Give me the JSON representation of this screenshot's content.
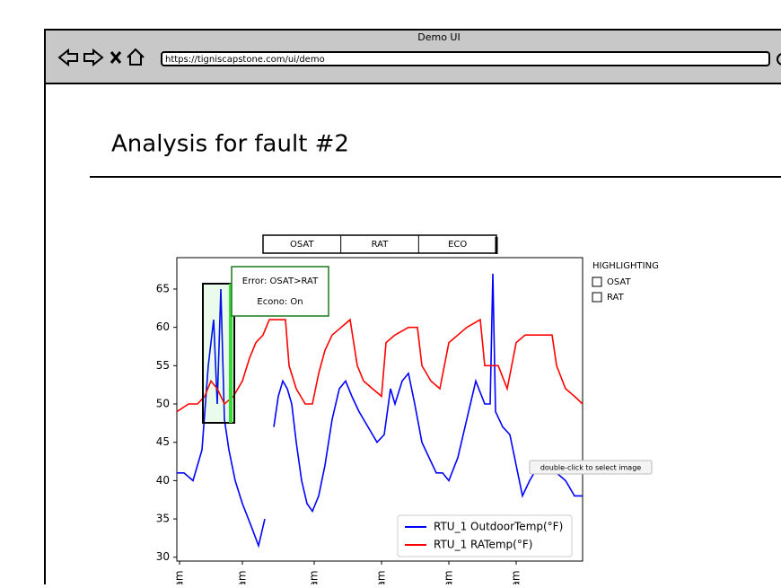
{
  "browser": {
    "title": "Demo UI",
    "url": "https://tigniscapstone.com/ui/demo"
  },
  "heading": "Analysis for fault #2",
  "tabs": [
    "OSAT",
    "RAT",
    "ECO"
  ],
  "highlighting": {
    "title": "HIGHLIGHTING",
    "options": [
      "OSAT",
      "RAT"
    ]
  },
  "tooltip": "double-click to select image",
  "chart_data": {
    "type": "line",
    "annotations": [
      "Error: OSAT>RAT",
      "Econo: On"
    ],
    "series": [
      {
        "name": "RTU_1 OutdoorTemp(°F)",
        "color": "#0000ff",
        "x": [
          0,
          8,
          18,
          28,
          35,
          41,
          45,
          49,
          53,
          58,
          65,
          73,
          83,
          91,
          98,
          103,
          108,
          113,
          118,
          123,
          128,
          133,
          139,
          145,
          151,
          158,
          165,
          173,
          181,
          188,
          195,
          203,
          213,
          223,
          231,
          238,
          243,
          251,
          258,
          265,
          273,
          281,
          289,
          296,
          303,
          313,
          323,
          333,
          343,
          349,
          352,
          355,
          363,
          371,
          378,
          385,
          393,
          403,
          413,
          423,
          433,
          443,
          452
        ],
        "values": [
          41,
          41,
          40,
          44,
          55,
          61,
          50,
          65,
          48,
          44,
          40,
          37,
          34,
          31.5,
          35,
          null,
          47,
          51,
          53,
          52,
          50,
          45,
          40,
          37,
          36,
          38,
          42,
          48,
          52,
          53,
          51,
          49,
          47,
          45,
          46,
          52,
          50,
          53,
          54,
          50,
          45,
          43,
          41,
          41,
          40,
          43,
          48,
          53,
          50,
          50,
          67,
          49,
          47,
          46,
          42,
          38,
          40,
          42,
          41,
          41,
          40,
          38,
          38
        ]
      },
      {
        "name": "RTU_1 RATemp(°F)",
        "color": "#ff0000",
        "x": [
          0,
          13,
          23,
          31,
          38,
          45,
          53,
          63,
          73,
          81,
          88,
          96,
          103,
          113,
          121,
          125,
          133,
          143,
          151,
          158,
          165,
          173,
          183,
          193,
          201,
          208,
          218,
          228,
          233,
          243,
          258,
          268,
          273,
          283,
          293,
          303,
          313,
          323,
          338,
          343,
          351,
          358,
          368,
          378,
          388,
          403,
          418,
          423,
          433,
          443,
          452
        ],
        "values": [
          49,
          50,
          50,
          51,
          53,
          52,
          50,
          51,
          53,
          56,
          58,
          59,
          61,
          61,
          61,
          55,
          52,
          50,
          50,
          54,
          57,
          59,
          60,
          61,
          55,
          53,
          52,
          51,
          58,
          59,
          60,
          60,
          55,
          53,
          52,
          58,
          59,
          60,
          61,
          55,
          55,
          55,
          52,
          58,
          59,
          59,
          59,
          55,
          52,
          51,
          50
        ]
      }
    ],
    "xlim": [
      0,
      452
    ],
    "xticks": [
      {
        "value": 3,
        "label": "am"
      },
      {
        "value": 73,
        "label": "am"
      },
      {
        "value": 153,
        "label": "am"
      },
      {
        "value": 228,
        "label": "am"
      },
      {
        "value": 303,
        "label": "am"
      },
      {
        "value": 378,
        "label": "am"
      }
    ],
    "ylim": [
      29.5,
      69.1
    ],
    "yticks": [
      30,
      35,
      40,
      45,
      50,
      55,
      60,
      65
    ],
    "legend": "lower right"
  }
}
